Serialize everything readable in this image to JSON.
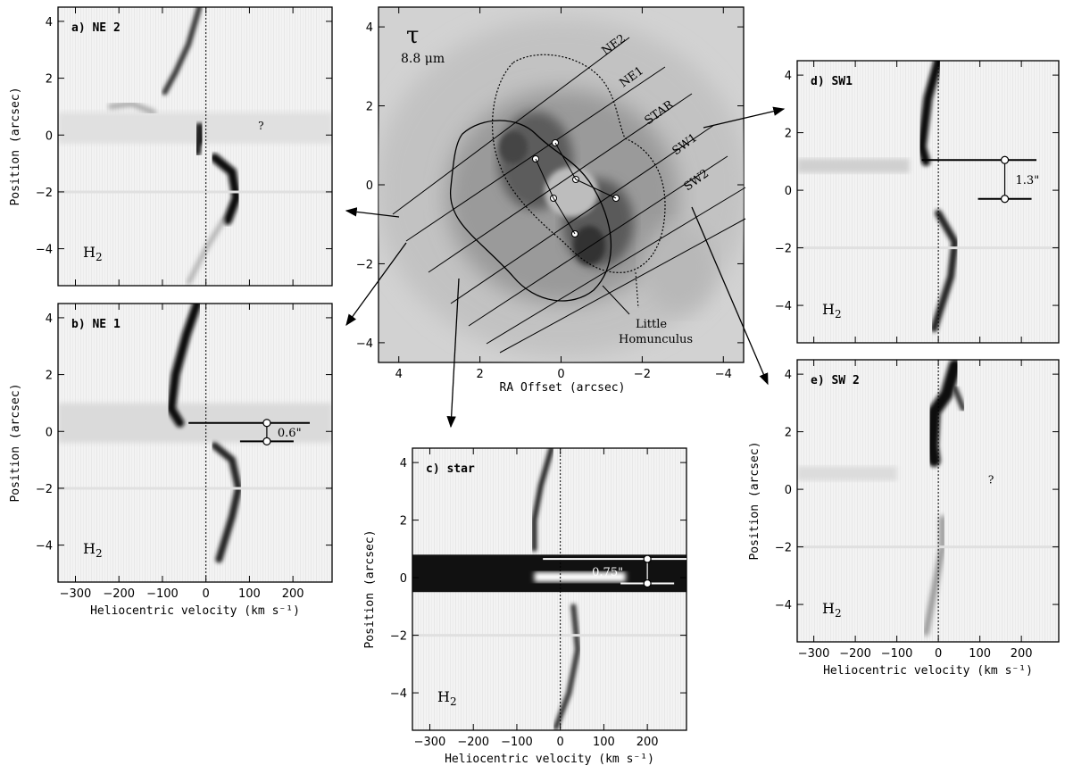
{
  "chart_data": [
    {
      "id": "center",
      "type": "image",
      "symbol": "τ",
      "wavelength": "8.8 μm",
      "xlabel": "RA Offset (arcsec)",
      "ylabel": "",
      "xlim": [
        4.5,
        -4.5
      ],
      "ylim": [
        -4.5,
        4.5
      ],
      "xticks": [
        4,
        2,
        0,
        -2,
        -4
      ],
      "yticks": [
        4,
        2,
        0,
        -2,
        -4
      ],
      "slit_labels": [
        "NE2",
        "NE1",
        "STAR",
        "SW1",
        "SW2"
      ],
      "annotation": [
        "Little",
        "Homunculus"
      ]
    },
    {
      "id": "a",
      "type": "image",
      "panel_label": "a) NE 2",
      "ylabel": "Position (arcsec)",
      "xlabel": "",
      "xlim": [
        -340,
        290
      ],
      "ylim": [
        -5.3,
        4.5
      ],
      "xticks": [
        -300,
        -200,
        -100,
        0,
        100,
        200
      ],
      "yticks": [
        4,
        2,
        0,
        -2,
        -4
      ],
      "species": "H2",
      "note": "?"
    },
    {
      "id": "b",
      "type": "image",
      "panel_label": "b) NE 1",
      "ylabel": "Position (arcsec)",
      "xlabel": "Heliocentric velocity (km s⁻¹)",
      "xlim": [
        -340,
        290
      ],
      "ylim": [
        -5.3,
        4.5
      ],
      "xticks": [
        -300,
        -200,
        -100,
        0,
        100,
        200
      ],
      "yticks": [
        4,
        2,
        0,
        -2,
        -4
      ],
      "species": "H2",
      "separation": "0.6\""
    },
    {
      "id": "c",
      "type": "image",
      "panel_label": "c) star",
      "ylabel": "Position (arcsec)",
      "xlabel": "Heliocentric velocity (km s⁻¹)",
      "xlim": [
        -340,
        290
      ],
      "ylim": [
        -5.3,
        4.5
      ],
      "xticks": [
        -300,
        -200,
        -100,
        0,
        100,
        200
      ],
      "yticks": [
        4,
        2,
        0,
        -2,
        -4
      ],
      "species": "H2",
      "separation": "0.75\""
    },
    {
      "id": "d",
      "type": "image",
      "panel_label": "d) SW1",
      "ylabel": "",
      "xlabel": "",
      "xlim": [
        -340,
        290
      ],
      "ylim": [
        -5.3,
        4.5
      ],
      "xticks": [
        -300,
        -200,
        -100,
        0,
        100,
        200
      ],
      "yticks": [
        4,
        2,
        0,
        -2,
        -4
      ],
      "species": "H2",
      "separation": "1.3\""
    },
    {
      "id": "e",
      "type": "image",
      "panel_label": "e) SW 2",
      "ylabel": "Position (arcsec)",
      "xlabel": "Heliocentric velocity (km s⁻¹)",
      "xlim": [
        -340,
        290
      ],
      "ylim": [
        -5.3,
        4.5
      ],
      "xticks": [
        -300,
        -200,
        -100,
        0,
        100,
        200
      ],
      "yticks": [
        4,
        2,
        0,
        -2,
        -4
      ],
      "species": "H2",
      "note": "?"
    }
  ]
}
